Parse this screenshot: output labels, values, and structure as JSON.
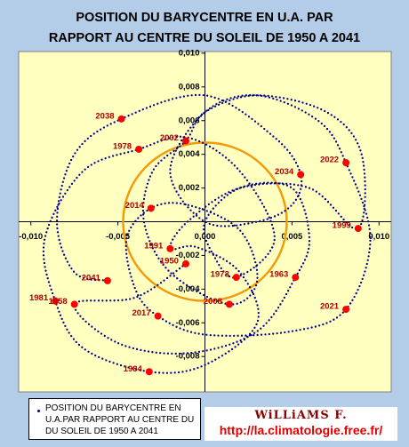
{
  "chart_data": {
    "type": "scatter",
    "title": [
      "POSITION DU BARYCENTRE EN U.A. PAR",
      "RAPPORT AU CENTRE DU SOLEIL DE 1950 A 2041"
    ],
    "xlim": [
      -0.0107,
      0.0107
    ],
    "ylim": [
      -0.0101,
      0.0101
    ],
    "xticks": [
      {
        "value": -0.01,
        "label": "-0,010"
      },
      {
        "value": -0.005,
        "label": "-0,005"
      },
      {
        "value": 0,
        "label": "0,000"
      },
      {
        "value": 0.005,
        "label": "0,005"
      },
      {
        "value": 0.01,
        "label": "0,010"
      }
    ],
    "yticks": [
      {
        "value": 0.01,
        "label": "0,010"
      },
      {
        "value": 0.008,
        "label": "0,008"
      },
      {
        "value": 0.006,
        "label": "0,006"
      },
      {
        "value": 0.004,
        "label": "0,004"
      },
      {
        "value": 0.002,
        "label": "0,002"
      },
      {
        "value": -0.002,
        "label": "-0,002"
      },
      {
        "value": -0.004,
        "label": "-0,004"
      },
      {
        "value": -0.006,
        "label": "-0,006"
      },
      {
        "value": -0.008,
        "label": "-0,008"
      }
    ],
    "grid": false,
    "series": [
      {
        "name": "POSITION DU BARYCENTRE EN U.A.PAR RAPPORT AU CENTRE DU DU SOLEIL DE 1950 A 2041",
        "color": "#00008b",
        "style": "dotted",
        "x": [
          -0.0011,
          -0.004,
          -0.0075,
          -0.005,
          -0.001,
          0.003,
          0.0052,
          0.006,
          0.005,
          0.002,
          0.0,
          0.0005,
          0.0018,
          0.004,
          0.002,
          -0.001,
          -0.0038,
          -0.007,
          -0.0092,
          -0.0086,
          -0.007,
          -0.0032,
          0.0,
          0.003,
          0.002,
          -0.0005,
          -0.002,
          -0.001,
          0.002,
          0.006,
          0.0088,
          0.009,
          0.007,
          0.003,
          0.0,
          -0.0011,
          -0.003,
          -0.0035,
          -0.002,
          0.0014,
          0.003,
          0.002,
          -0.001,
          -0.0031,
          -0.0045,
          -0.004,
          -0.0027,
          0.0,
          0.005,
          0.0081,
          0.0095,
          0.0081,
          0.0065,
          0.003,
          0.0,
          -0.002,
          0.0,
          0.003,
          0.005,
          0.0055,
          0.004,
          0.0,
          -0.0048,
          -0.0075,
          -0.0085,
          -0.0075,
          -0.0056
        ],
        "y": [
          -0.0025,
          -0.0045,
          -0.0049,
          -0.0072,
          -0.0078,
          -0.0065,
          -0.0033,
          -0.001,
          0.002,
          0.002,
          0.0,
          -0.002,
          -0.0033,
          -0.001,
          0.003,
          0.005,
          0.0043,
          0.003,
          -0.001,
          -0.0047,
          -0.0075,
          -0.0089,
          -0.0085,
          -0.006,
          -0.003,
          -0.0015,
          -0.0016,
          0.0,
          0.002,
          0.002,
          -0.0004,
          0.004,
          0.0065,
          0.0075,
          0.0065,
          0.0048,
          0.003,
          0.0,
          -0.003,
          -0.0049,
          -0.0035,
          -0.0005,
          0.001,
          0.0008,
          -0.001,
          -0.004,
          -0.0056,
          -0.0067,
          -0.0065,
          -0.0052,
          -0.001,
          0.0035,
          0.006,
          0.0075,
          0.0065,
          0.003,
          0.0,
          0.0,
          0.001,
          0.0028,
          0.005,
          0.0075,
          0.0061,
          0.004,
          0.0,
          -0.003,
          -0.0035
        ]
      },
      {
        "color": "#ff0000",
        "style": "points",
        "labels": [
          "2038",
          "2002",
          "1978",
          "2034",
          "2022",
          "2014",
          "1999",
          "1991",
          "1950",
          "2041",
          "1973",
          "1963",
          "1981",
          "1958",
          "2008",
          "2021",
          "2017",
          "1984"
        ],
        "x": [
          -0.0048,
          -0.0011,
          -0.0038,
          0.0055,
          0.0081,
          -0.0031,
          0.0088,
          -0.002,
          -0.0011,
          -0.0056,
          0.0018,
          0.0052,
          -0.0086,
          -0.0075,
          0.0014,
          0.0081,
          -0.0027,
          -0.0032
        ],
        "y": [
          0.0061,
          0.0048,
          0.0043,
          0.0028,
          0.0035,
          0.0008,
          -0.0004,
          -0.0016,
          -0.0025,
          -0.0035,
          -0.0033,
          -0.0033,
          -0.0047,
          -0.0049,
          -0.0049,
          -0.0052,
          -0.0056,
          -0.0089
        ]
      }
    ],
    "circle": {
      "color": "#f29b0c",
      "radius": 0.0047
    },
    "credit_author": "WiLLiAMS F.",
    "credit_url": "http://la.climatologie.free.fr/"
  }
}
